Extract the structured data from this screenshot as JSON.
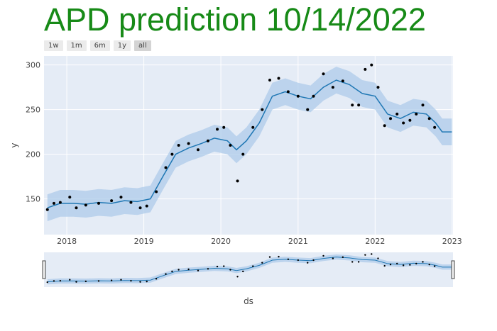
{
  "title": "APD prediction 10/14/2022",
  "colors": {
    "title": "#178a17",
    "plot_bg": "#e5ecf6",
    "line": "#1f77b4",
    "band": "#aecbea",
    "points": "#000000"
  },
  "range_selector": {
    "buttons": [
      "1w",
      "1m",
      "6m",
      "1y",
      "all"
    ],
    "active": "all"
  },
  "chart_data": {
    "type": "line",
    "title": "APD prediction 10/14/2022",
    "xlabel": "ds",
    "ylabel": "y",
    "x_range": [
      "2017-09-15",
      "2023-01-05"
    ],
    "y_range": [
      110,
      310
    ],
    "x_ticks": [
      "2018",
      "2019",
      "2020",
      "2021",
      "2022",
      "2023"
    ],
    "y_ticks": [
      150,
      200,
      250,
      300
    ],
    "grid": true,
    "range_slider": true,
    "series": [
      {
        "kind": "actual",
        "style": "markers",
        "points": [
          [
            "2017-10-01",
            138
          ],
          [
            "2017-11-01",
            145
          ],
          [
            "2017-12-01",
            146
          ],
          [
            "2018-01-15",
            152
          ],
          [
            "2018-02-15",
            140
          ],
          [
            "2018-04-01",
            143
          ],
          [
            "2018-06-01",
            145
          ],
          [
            "2018-08-01",
            148
          ],
          [
            "2018-09-15",
            152
          ],
          [
            "2018-11-01",
            146
          ],
          [
            "2018-12-15",
            140
          ],
          [
            "2019-01-15",
            142
          ],
          [
            "2019-03-01",
            158
          ],
          [
            "2019-04-15",
            185
          ],
          [
            "2019-05-15",
            200
          ],
          [
            "2019-06-15",
            210
          ],
          [
            "2019-08-01",
            212
          ],
          [
            "2019-09-15",
            205
          ],
          [
            "2019-11-01",
            215
          ],
          [
            "2019-12-15",
            228
          ],
          [
            "2020-01-15",
            230
          ],
          [
            "2020-02-15",
            210
          ],
          [
            "2020-03-20",
            170
          ],
          [
            "2020-04-15",
            200
          ],
          [
            "2020-06-01",
            230
          ],
          [
            "2020-07-15",
            250
          ],
          [
            "2020-08-20",
            283
          ],
          [
            "2020-10-01",
            285
          ],
          [
            "2020-11-15",
            270
          ],
          [
            "2021-01-01",
            265
          ],
          [
            "2021-02-15",
            250
          ],
          [
            "2021-03-15",
            265
          ],
          [
            "2021-05-01",
            290
          ],
          [
            "2021-06-15",
            275
          ],
          [
            "2021-08-01",
            282
          ],
          [
            "2021-09-15",
            255
          ],
          [
            "2021-10-15",
            255
          ],
          [
            "2021-11-15",
            295
          ],
          [
            "2021-12-15",
            300
          ],
          [
            "2022-01-15",
            275
          ],
          [
            "2022-02-15",
            232
          ],
          [
            "2022-03-15",
            240
          ],
          [
            "2022-04-15",
            245
          ],
          [
            "2022-05-15",
            235
          ],
          [
            "2022-06-15",
            238
          ],
          [
            "2022-07-15",
            245
          ],
          [
            "2022-08-15",
            255
          ],
          [
            "2022-09-15",
            240
          ],
          [
            "2022-10-10",
            230
          ]
        ]
      },
      {
        "kind": "forecast",
        "style": "line",
        "points": [
          [
            "2017-10-01",
            140
          ],
          [
            "2017-12-01",
            145
          ],
          [
            "2018-02-01",
            145
          ],
          [
            "2018-04-01",
            144
          ],
          [
            "2018-06-01",
            146
          ],
          [
            "2018-08-01",
            145
          ],
          [
            "2018-10-01",
            148
          ],
          [
            "2018-12-01",
            147
          ],
          [
            "2019-02-01",
            150
          ],
          [
            "2019-04-01",
            175
          ],
          [
            "2019-06-01",
            200
          ],
          [
            "2019-08-01",
            207
          ],
          [
            "2019-10-01",
            212
          ],
          [
            "2019-12-01",
            218
          ],
          [
            "2020-02-01",
            215
          ],
          [
            "2020-03-15",
            205
          ],
          [
            "2020-05-01",
            215
          ],
          [
            "2020-07-01",
            235
          ],
          [
            "2020-09-01",
            265
          ],
          [
            "2020-11-01",
            270
          ],
          [
            "2021-01-01",
            265
          ],
          [
            "2021-03-01",
            262
          ],
          [
            "2021-05-01",
            275
          ],
          [
            "2021-07-01",
            283
          ],
          [
            "2021-09-01",
            278
          ],
          [
            "2021-11-01",
            268
          ],
          [
            "2022-01-01",
            265
          ],
          [
            "2022-03-01",
            245
          ],
          [
            "2022-05-01",
            240
          ],
          [
            "2022-07-01",
            247
          ],
          [
            "2022-09-01",
            245
          ],
          [
            "2022-10-15",
            235
          ],
          [
            "2022-11-15",
            225
          ],
          [
            "2022-12-31",
            225
          ]
        ]
      },
      {
        "kind": "uncertainty",
        "style": "band",
        "offset": 15
      }
    ]
  }
}
